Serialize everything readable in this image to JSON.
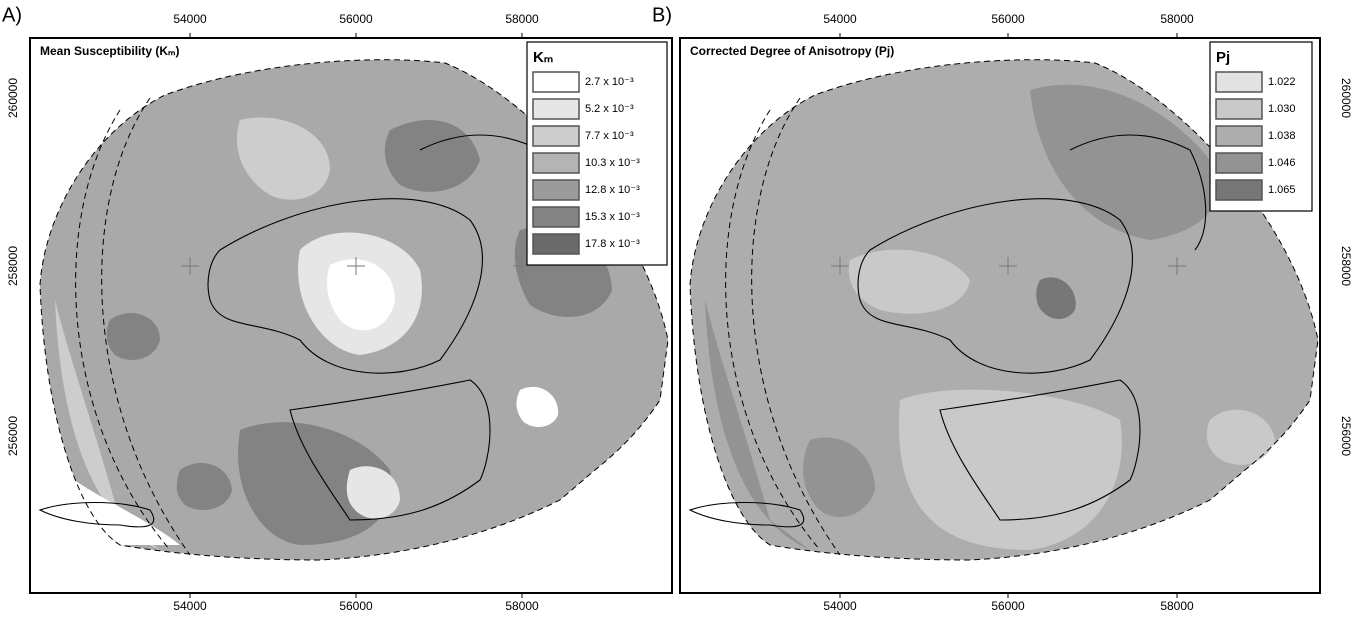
{
  "panels": [
    {
      "label": "A)",
      "title": "Mean Susceptibility (Kₘ)",
      "legend": {
        "title": "Kₘ",
        "items": [
          {
            "label": "2.7 x 10⁻³",
            "fill": "#ffffff"
          },
          {
            "label": "5.2 x 10⁻³",
            "fill": "#e6e6e6"
          },
          {
            "label": "7.7 x 10⁻³",
            "fill": "#cdcdcd"
          },
          {
            "label": "10.3 x 10⁻³",
            "fill": "#b4b4b4"
          },
          {
            "label": "12.8 x 10⁻³",
            "fill": "#9b9b9b"
          },
          {
            "label": "15.3 x 10⁻³",
            "fill": "#838383"
          },
          {
            "label": "17.8 x 10⁻³",
            "fill": "#6a6a6a"
          }
        ]
      },
      "x_ticks": [
        "54000",
        "56000",
        "58000"
      ],
      "y_ticks": [
        "260000",
        "258000",
        "256000"
      ]
    },
    {
      "label": "B)",
      "title": "Corrected Degree of Anisotropy (Pj)",
      "legend": {
        "title": "Pj",
        "items": [
          {
            "label": "1.022",
            "fill": "#e2e2e2"
          },
          {
            "label": "1.030",
            "fill": "#c9c9c9"
          },
          {
            "label": "1.038",
            "fill": "#adadad"
          },
          {
            "label": "1.046",
            "fill": "#939393"
          },
          {
            "label": "1.065",
            "fill": "#777777"
          }
        ]
      },
      "x_ticks": [
        "54000",
        "56000",
        "58000"
      ],
      "y_ticks": [
        "260000",
        "258000",
        "256000"
      ]
    }
  ]
}
